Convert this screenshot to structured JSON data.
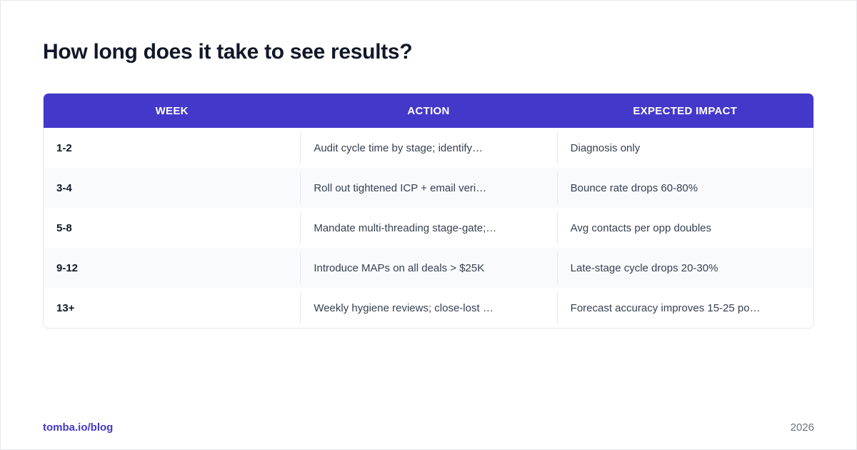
{
  "title": "How long does it take to see results?",
  "table": {
    "headers": [
      "WEEK",
      "ACTION",
      "EXPECTED IMPACT"
    ],
    "rows": [
      {
        "week": "1-2",
        "action": "Audit cycle time by stage; identify…",
        "impact": "Diagnosis only"
      },
      {
        "week": "3-4",
        "action": "Roll out tightened ICP + email veri…",
        "impact": "Bounce rate drops 60-80%"
      },
      {
        "week": "5-8",
        "action": "Mandate multi-threading stage-gate;…",
        "impact": "Avg contacts per opp doubles"
      },
      {
        "week": "9-12",
        "action": "Introduce MAPs on all deals > $25K",
        "impact": "Late-stage cycle drops 20-30%"
      },
      {
        "week": "13+",
        "action": "Weekly hygiene reviews; close-lost …",
        "impact": "Forecast accuracy improves 15-25 po…"
      }
    ]
  },
  "footer": {
    "site": "tomba.io/blog",
    "year": "2026"
  },
  "colors": {
    "header_bg": "#4338ca",
    "accent": "#4338ca",
    "row_alt": "#f8fafc"
  }
}
